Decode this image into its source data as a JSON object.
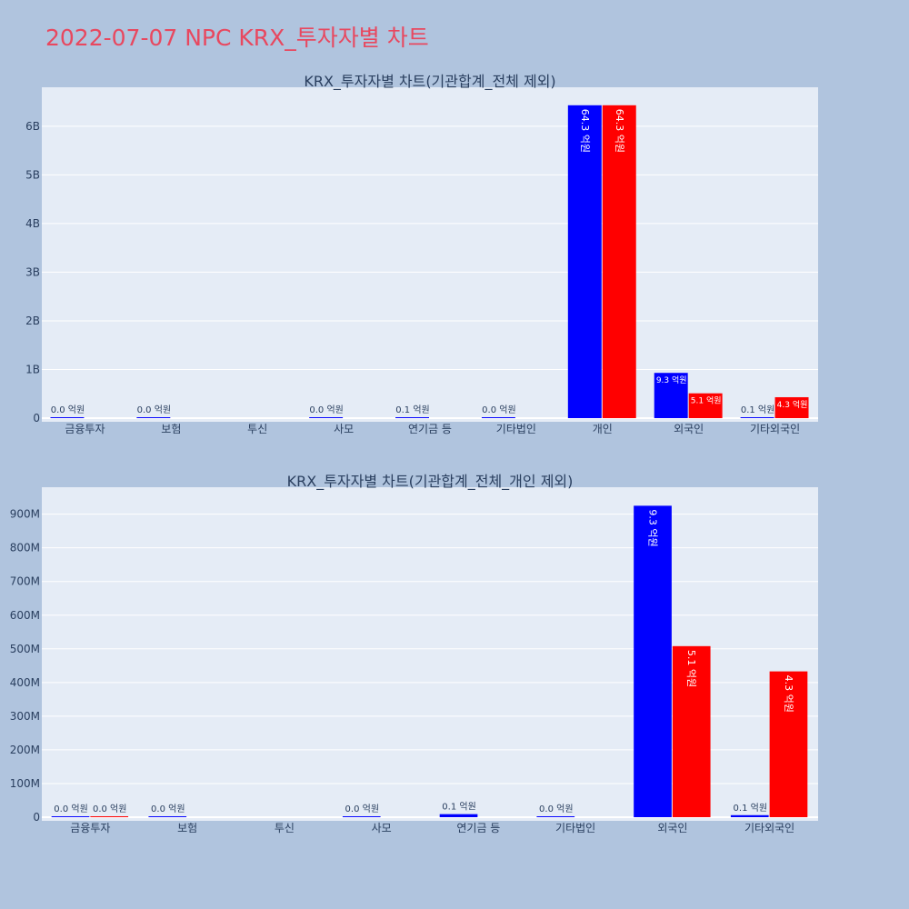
{
  "page": {
    "title": "2022-07-07 NPC KRX_투자자별 차트"
  },
  "colors": {
    "background": "#b0c4de",
    "plot_bg": "#e5ecf6",
    "title": "#e8485f",
    "series1": "#0000ff",
    "series2": "#ff0000"
  },
  "chart_data": [
    {
      "type": "bar",
      "title": "KRX_투자자별 차트(기관합계_전체 제외)",
      "categories": [
        "금융투자",
        "보험",
        "투신",
        "사모",
        "연기금 등",
        "기타법인",
        "개인",
        "외국인",
        "기타외국인"
      ],
      "ylim": [
        0,
        6800000000
      ],
      "yticks": [
        0,
        1000000000,
        2000000000,
        3000000000,
        4000000000,
        5000000000,
        6000000000
      ],
      "ytick_labels": [
        "0",
        "1B",
        "2B",
        "3B",
        "4B",
        "5B",
        "6B"
      ],
      "grid": true,
      "series": [
        {
          "color": "#0000ff",
          "values": [
            2000000,
            1000000,
            0,
            1000000,
            10000000,
            2000000,
            6430000000,
            930000000,
            6000000
          ],
          "labels": [
            "0.0 억원",
            "0.0 억원",
            "",
            "0.0 억원",
            "0.1 억원",
            "0.0 억원",
            "64.3 억원",
            "9.3 억원",
            "0.1 억원"
          ]
        },
        {
          "color": "#ff0000",
          "values": [
            0,
            0,
            0,
            0,
            0,
            0,
            6430000000,
            510000000,
            430000000
          ],
          "labels": [
            "",
            "",
            "",
            "",
            "",
            "",
            "64.3 억원",
            "5.1 억원",
            "4.3 억원"
          ]
        }
      ]
    },
    {
      "type": "bar",
      "title": "KRX_투자자별 차트(기관합계_전체_개인 제외)",
      "categories": [
        "금융투자",
        "보험",
        "투신",
        "사모",
        "연기금 등",
        "기타법인",
        "외국인",
        "기타외국인"
      ],
      "ylim": [
        0,
        980000000
      ],
      "yticks": [
        0,
        100000000,
        200000000,
        300000000,
        400000000,
        500000000,
        600000000,
        700000000,
        800000000,
        900000000
      ],
      "ytick_labels": [
        "0",
        "100M",
        "200M",
        "300M",
        "400M",
        "500M",
        "600M",
        "700M",
        "800M",
        "900M"
      ],
      "grid": true,
      "series": [
        {
          "color": "#0000ff",
          "values": [
            2000000,
            1000000,
            0,
            1000000,
            9000000,
            2000000,
            925000000,
            6000000
          ],
          "labels": [
            "0.0 억원",
            "0.0 억원",
            "",
            "0.0 억원",
            "0.1 억원",
            "0.0 억원",
            "9.3 억원",
            "0.1 억원"
          ]
        },
        {
          "color": "#ff0000",
          "values": [
            1000000,
            0,
            0,
            0,
            0,
            0,
            508000000,
            433000000
          ],
          "labels": [
            "0.0 억원",
            "",
            "",
            "",
            "",
            "",
            "5.1 억원",
            "4.3 억원"
          ]
        }
      ]
    }
  ]
}
